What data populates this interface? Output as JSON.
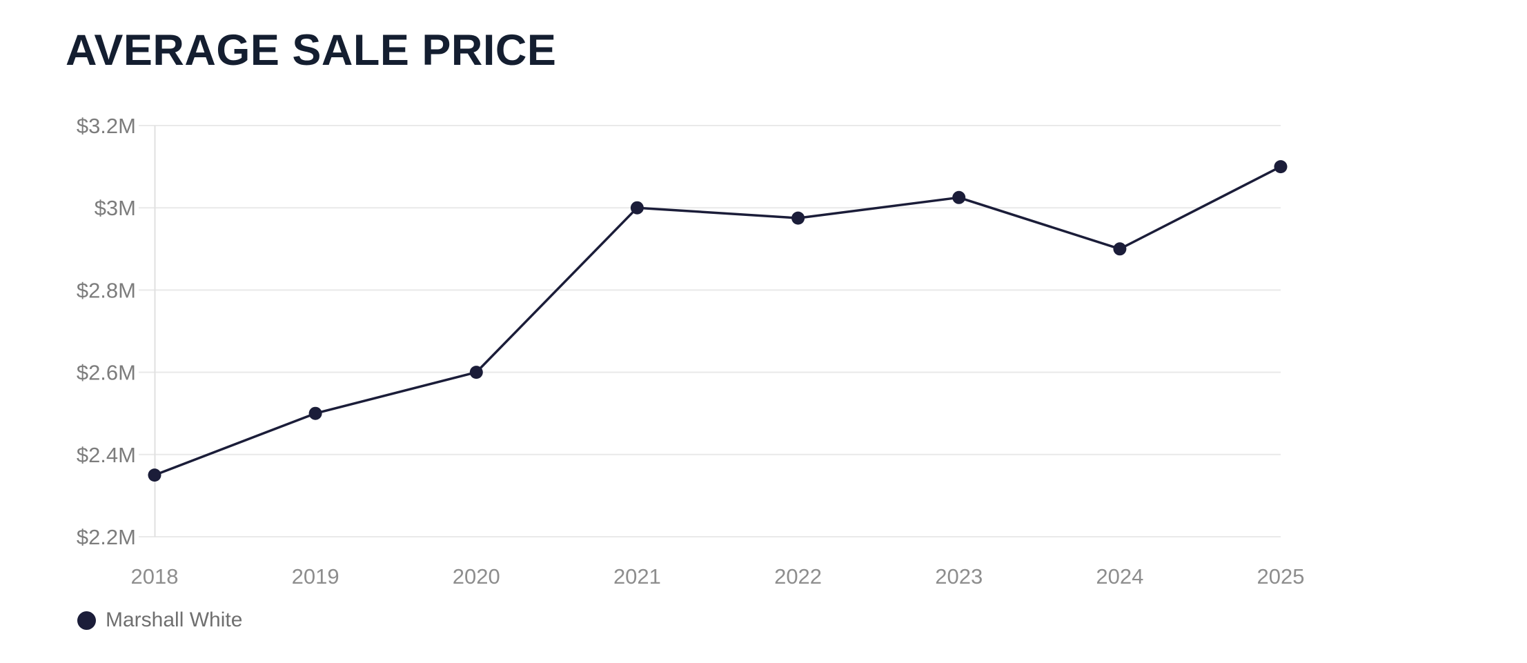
{
  "chart_data": {
    "type": "line",
    "title": "AVERAGE SALE PRICE",
    "categories": [
      "2018",
      "2019",
      "2020",
      "2021",
      "2022",
      "2023",
      "2024",
      "2025"
    ],
    "series": [
      {
        "name": "Marshall White",
        "values": [
          2.35,
          2.5,
          2.6,
          3.0,
          2.975,
          3.025,
          2.9,
          3.1
        ]
      }
    ],
    "value_unit": "millions_usd",
    "ylim": [
      2.2,
      3.2
    ],
    "yticks": [
      {
        "value": 2.2,
        "label": "$2.2M"
      },
      {
        "value": 2.4,
        "label": "$2.4M"
      },
      {
        "value": 2.6,
        "label": "$2.6M"
      },
      {
        "value": 2.8,
        "label": "$2.8M"
      },
      {
        "value": 3.0,
        "label": "$3M"
      },
      {
        "value": 3.2,
        "label": "$3.2M"
      }
    ],
    "grid": "horizontal",
    "legend_position": "bottom-left",
    "colors": {
      "line": "#1b1d39",
      "point": "#1b1d39",
      "title": "#141e30",
      "y_tick_label": "#7c7c7c",
      "x_tick_label": "#8d8d8d",
      "gridline": "#e9e9e9",
      "axis_line": "#e0e0e0",
      "legend_text": "#6f6f6f",
      "background": "#ffffff"
    }
  }
}
